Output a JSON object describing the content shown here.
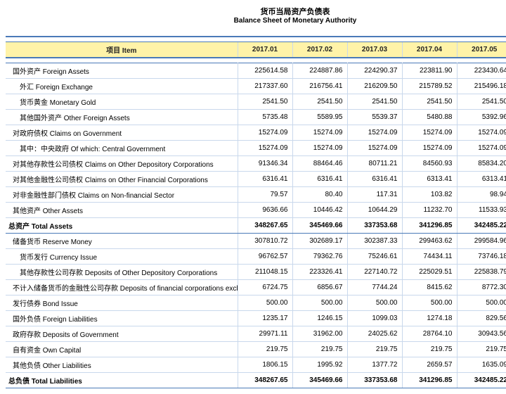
{
  "title": {
    "cn": "货币当局资产负债表",
    "en": "Balance Sheet of  Monetary Authority"
  },
  "header": {
    "item": "项目  Item",
    "cols": [
      "2017.01",
      "2017.02",
      "2017.03",
      "2017.04",
      "2017.05"
    ]
  },
  "rows": [
    {
      "label": "国外资产  Foreign Assets",
      "ind": 0,
      "v": [
        "225614.58",
        "224887.86",
        "224290.37",
        "223811.90",
        "223430.64"
      ]
    },
    {
      "label": "外汇 Foreign Exchange",
      "ind": 1,
      "v": [
        "217337.60",
        "216756.41",
        "216209.50",
        "215789.52",
        "215496.18"
      ]
    },
    {
      "label": "货币黄金  Monetary Gold",
      "ind": 1,
      "v": [
        "2541.50",
        "2541.50",
        "2541.50",
        "2541.50",
        "2541.50"
      ]
    },
    {
      "label": "其他国外资产  Other Foreign Assets",
      "ind": 1,
      "v": [
        "5735.48",
        "5589.95",
        "5539.37",
        "5480.88",
        "5392.96"
      ]
    },
    {
      "label": "对政府债权  Claims on Government",
      "ind": 0,
      "v": [
        "15274.09",
        "15274.09",
        "15274.09",
        "15274.09",
        "15274.09"
      ]
    },
    {
      "label": "其中：中央政府  Of which: Central Government",
      "ind": 1,
      "v": [
        "15274.09",
        "15274.09",
        "15274.09",
        "15274.09",
        "15274.09"
      ]
    },
    {
      "label": "对其他存款性公司债权  Claims on Other Depository Corporations",
      "ind": 0,
      "v": [
        "91346.34",
        "88464.46",
        "80711.21",
        "84560.93",
        "85834.20"
      ]
    },
    {
      "label": "对其他金融性公司债权  Claims on Other Financial  Corporations",
      "ind": 0,
      "v": [
        "6316.41",
        "6316.41",
        "6316.41",
        "6313.41",
        "6313.41"
      ]
    },
    {
      "label": "对非金融性部门债权  Claims on Non-financial Sector",
      "ind": 0,
      "v": [
        "79.57",
        "80.40",
        "117.31",
        "103.82",
        "98.94"
      ]
    },
    {
      "label": "其他资产  Other Assets",
      "ind": 0,
      "v": [
        "9636.66",
        "10446.42",
        "10644.29",
        "11232.70",
        "11533.93"
      ]
    },
    {
      "label": "总资产  Total Assets",
      "ind": 0,
      "total": true,
      "v": [
        "348267.65",
        "345469.66",
        "337353.68",
        "341296.85",
        "342485.22"
      ]
    },
    {
      "label": "储备货币  Reserve Money",
      "ind": 0,
      "v": [
        "307810.72",
        "302689.17",
        "302387.33",
        "299463.62",
        "299584.96"
      ]
    },
    {
      "label": "货币发行  Currency Issue",
      "ind": 1,
      "v": [
        "96762.57",
        "79362.76",
        "75246.61",
        "74434.11",
        "73746.18"
      ]
    },
    {
      "label": "其他存款性公司存款  Deposits of  Other Depository Corporations",
      "ind": 1,
      "v": [
        "211048.15",
        "223326.41",
        "227140.72",
        "225029.51",
        "225838.79"
      ]
    },
    {
      "label": "不计入储备货币的金融性公司存款  Deposits of financial corporations excluded from R",
      "ind": 0,
      "v": [
        "6724.75",
        "6856.67",
        "7744.24",
        "8415.62",
        "8772.30"
      ]
    },
    {
      "label": "发行债券  Bond Issue",
      "ind": 0,
      "v": [
        "500.00",
        "500.00",
        "500.00",
        "500.00",
        "500.00"
      ]
    },
    {
      "label": "国外负债  Foreign Liabilities",
      "ind": 0,
      "v": [
        "1235.17",
        "1246.15",
        "1099.03",
        "1274.18",
        "829.56"
      ]
    },
    {
      "label": "政府存款  Deposits of Government",
      "ind": 0,
      "v": [
        "29971.11",
        "31962.00",
        "24025.62",
        "28764.10",
        "30943.56"
      ]
    },
    {
      "label": "自有资金  Own Capital",
      "ind": 0,
      "v": [
        "219.75",
        "219.75",
        "219.75",
        "219.75",
        "219.75"
      ]
    },
    {
      "label": "其他负债  Other Liabilities",
      "ind": 0,
      "v": [
        "1806.15",
        "1995.92",
        "1377.72",
        "2659.57",
        "1635.09"
      ]
    },
    {
      "label": "总负债  Total  Liabilities",
      "ind": 0,
      "total": true,
      "v": [
        "348267.65",
        "345469.66",
        "337353.68",
        "341296.85",
        "342485.22"
      ]
    }
  ]
}
